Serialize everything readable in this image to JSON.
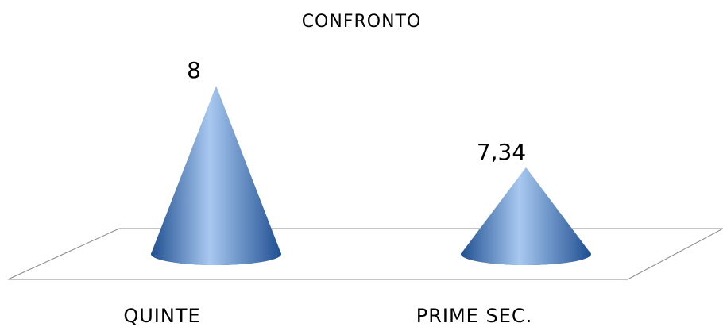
{
  "chart_data": {
    "type": "bar",
    "shape": "cone-3d",
    "title": "CONFRONTO",
    "categories": [
      "QUINTE",
      "PRIME SEC."
    ],
    "values": [
      8,
      7.34
    ],
    "data_labels": [
      "8",
      "7,34"
    ],
    "xlabel": "",
    "ylabel": "",
    "ylim": [
      7,
      8
    ],
    "grid": false,
    "legend": "none",
    "colors": {
      "cone_light": "#a8c8f0",
      "cone_mid": "#5a8fd6",
      "cone_dark": "#1f4f91",
      "floor_line": "#8a8a8a"
    }
  }
}
